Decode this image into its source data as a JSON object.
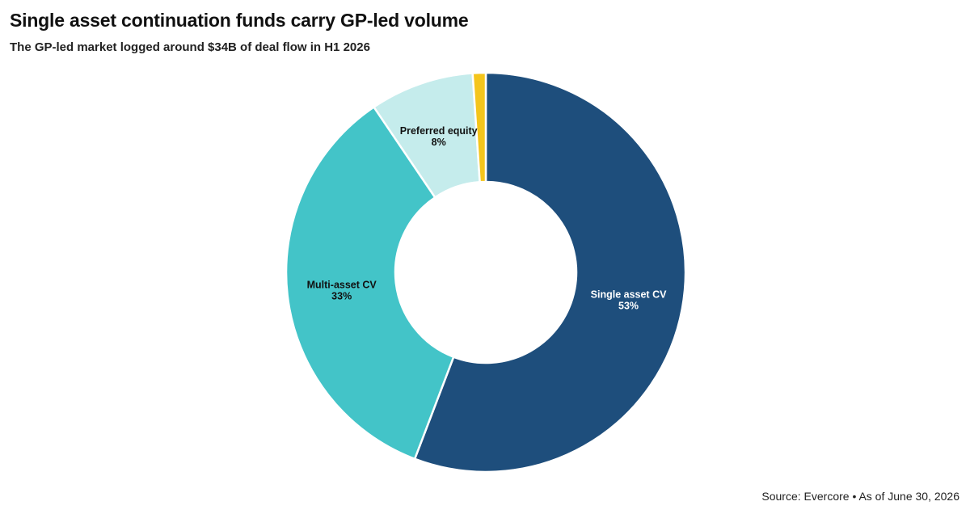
{
  "header": {
    "title": "Single asset continuation funds carry GP-led volume",
    "subtitle": "The GP-led market logged around $34B of deal flow in H1 2026"
  },
  "footer": {
    "source": "Source: Evercore • As of June 30, 2026"
  },
  "chart_data": {
    "type": "pie",
    "variant": "donut",
    "slices": [
      {
        "label": "Single asset CV",
        "value": 53,
        "value_label": "53%",
        "color": "#1e4e7c",
        "text_color": "#ffffff"
      },
      {
        "label": "Multi-asset CV",
        "value": 33,
        "value_label": "33%",
        "color": "#43c4c8",
        "text_color": "#111111"
      },
      {
        "label": "Preferred equity",
        "value": 8,
        "value_label": "8%",
        "color": "#c5ecec",
        "text_color": "#111111"
      },
      {
        "label": "",
        "value": 1,
        "value_label": "",
        "color": "#f4c51c",
        "text_color": "#111111"
      }
    ]
  }
}
